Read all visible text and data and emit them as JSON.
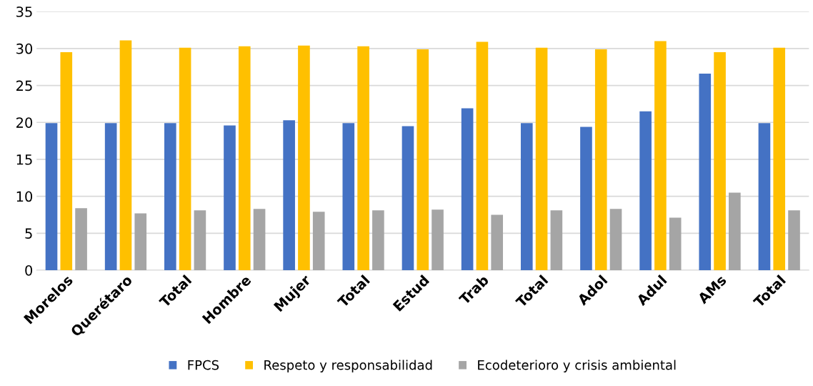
{
  "chart_data": {
    "type": "bar",
    "categories": [
      "Morelos",
      "Querétaro",
      "Total",
      "Hombre",
      "Mujer",
      "Total",
      "Estud",
      "Trab",
      "Total",
      "Adol",
      "Adul",
      "AMs",
      "Total"
    ],
    "series": [
      {
        "name": "FPCS",
        "color": "#4472c4",
        "values": [
          19.9,
          19.9,
          19.9,
          19.6,
          20.3,
          19.9,
          19.5,
          21.9,
          19.9,
          19.4,
          21.5,
          26.6,
          19.9
        ]
      },
      {
        "name": "Respeto y responsabilidad",
        "color": "#ffc000",
        "values": [
          29.5,
          31.1,
          30.1,
          30.3,
          30.4,
          30.3,
          29.9,
          30.9,
          30.1,
          29.9,
          31.0,
          29.5,
          30.1
        ]
      },
      {
        "name": "Ecodeterioro y crisis ambiental",
        "color": "#a5a5a5",
        "values": [
          8.4,
          7.7,
          8.1,
          8.3,
          7.9,
          8.1,
          8.2,
          7.5,
          8.1,
          8.3,
          7.1,
          10.5,
          8.1
        ]
      }
    ],
    "ylim": [
      0,
      35
    ],
    "yticks": [
      0,
      5,
      10,
      15,
      20,
      25,
      30,
      35
    ],
    "grid": "y",
    "legend": "bottom"
  }
}
